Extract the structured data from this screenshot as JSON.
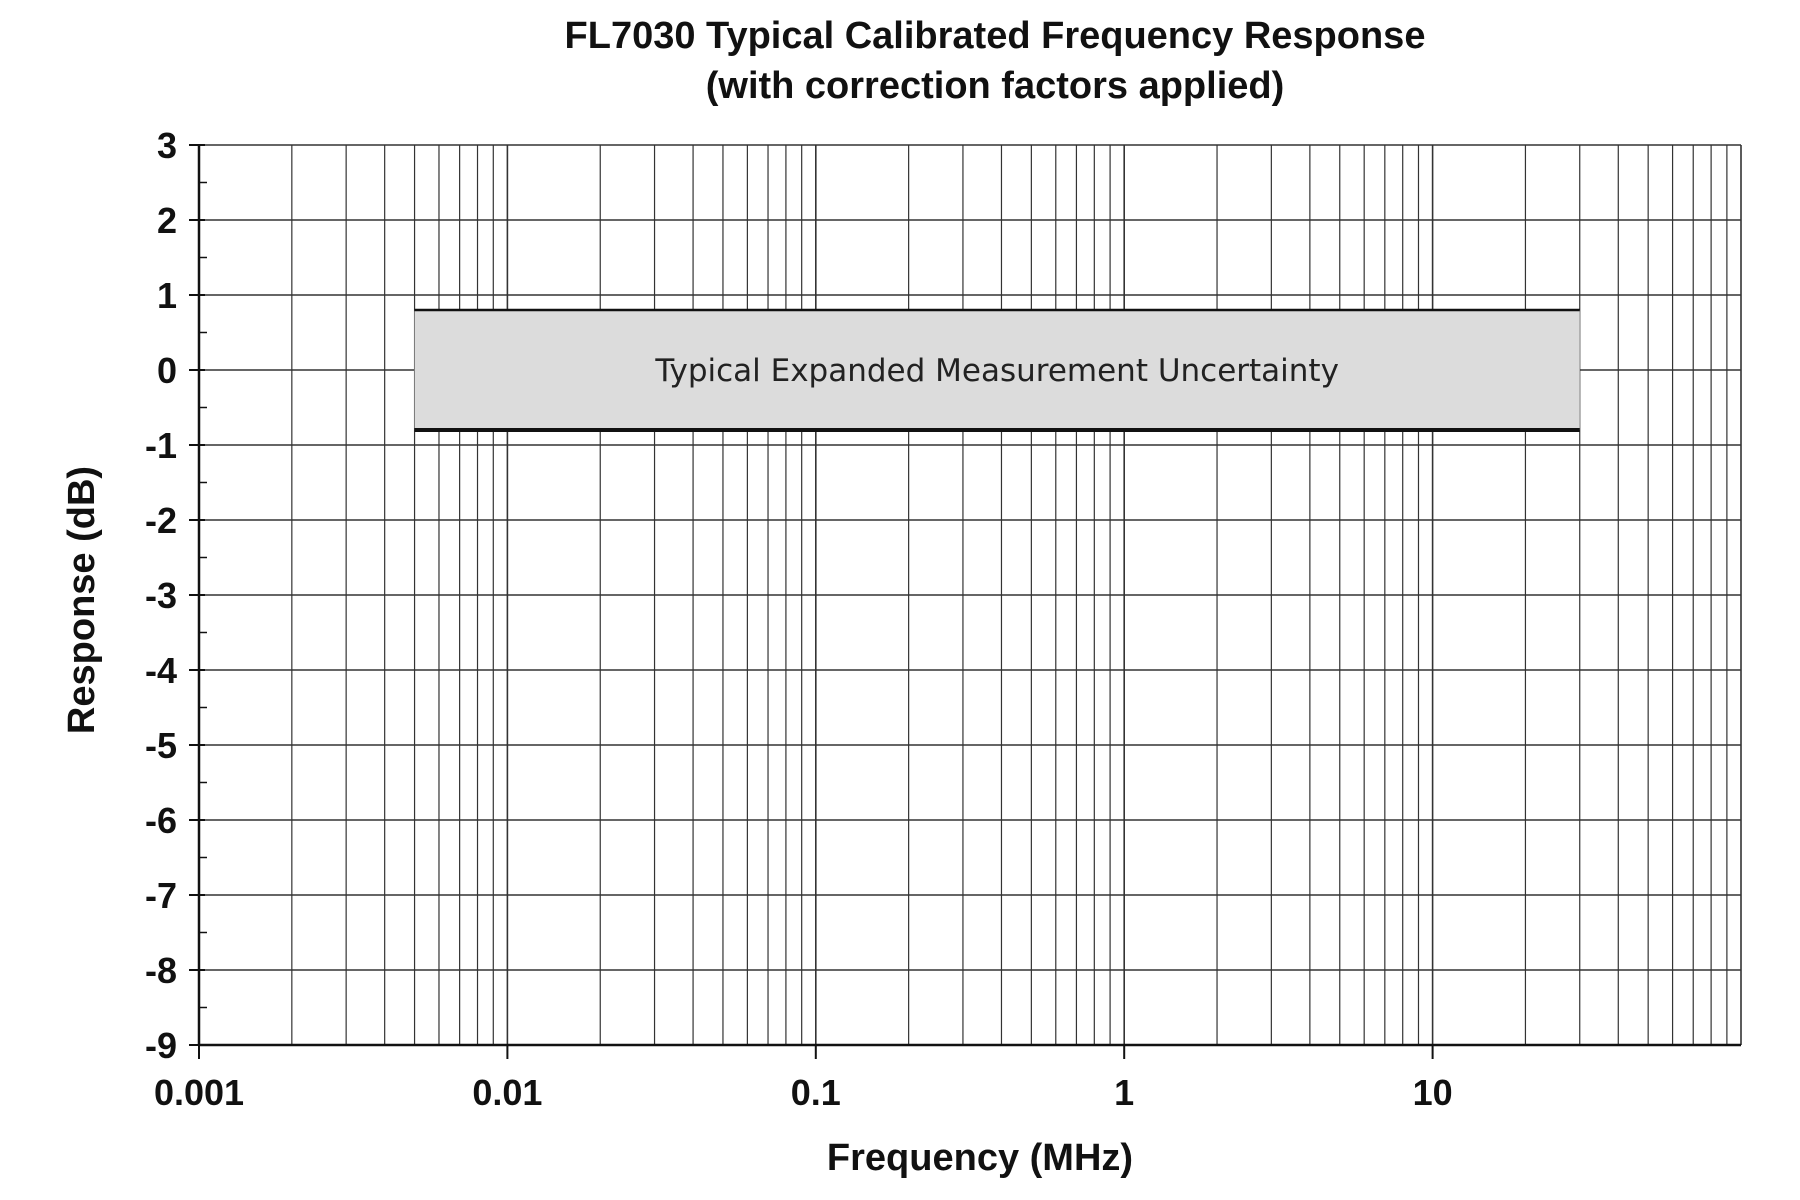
{
  "chart_data": {
    "type": "area",
    "title": "FL7030 Typical Calibrated Frequency Response",
    "subtitle": "(with correction factors applied)",
    "xlabel": "Frequency (MHz)",
    "ylabel": "Response (dB)",
    "x_scale": "log",
    "xlim": [
      0.001,
      100
    ],
    "ylim": [
      -9,
      3
    ],
    "x_ticks": [
      {
        "value": 0.001,
        "label": "0.001"
      },
      {
        "value": 0.01,
        "label": "0.01"
      },
      {
        "value": 0.1,
        "label": "0.1"
      },
      {
        "value": 1,
        "label": "1"
      },
      {
        "value": 10,
        "label": "10"
      }
    ],
    "y_ticks": [
      {
        "value": 3,
        "label": "3"
      },
      {
        "value": 2,
        "label": "2"
      },
      {
        "value": 1,
        "label": "1"
      },
      {
        "value": 0,
        "label": "0"
      },
      {
        "value": -1,
        "label": "-1"
      },
      {
        "value": -2,
        "label": "-2"
      },
      {
        "value": -3,
        "label": "-3"
      },
      {
        "value": -4,
        "label": "-4"
      },
      {
        "value": -5,
        "label": "-5"
      },
      {
        "value": -6,
        "label": "-6"
      },
      {
        "value": -7,
        "label": "-7"
      },
      {
        "value": -8,
        "label": "-8"
      },
      {
        "value": -9,
        "label": "-9"
      }
    ],
    "grid": true,
    "band": {
      "label": "Typical Expanded Measurement Uncertainty",
      "x": [
        0.005,
        30
      ],
      "y": [
        -0.8,
        0.8
      ],
      "fill": "#dcdcdc",
      "edge_color": "#111111"
    },
    "grid_color": "#333333",
    "axis_color": "#111111"
  }
}
